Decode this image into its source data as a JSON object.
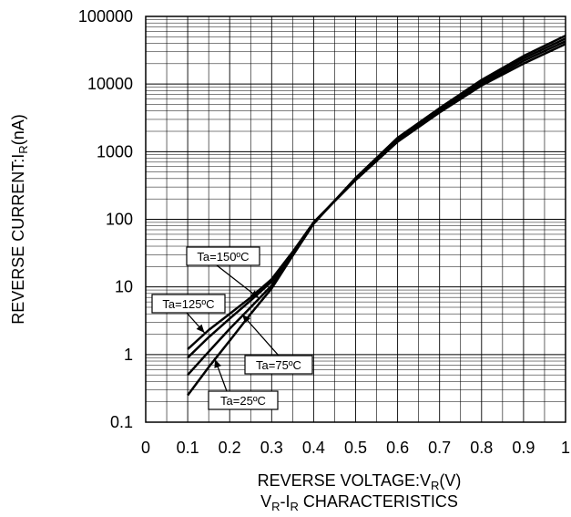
{
  "chart_data": {
    "type": "line",
    "x_axis": {
      "label_main": "REVERSE VOLTAGE:V",
      "label_sub": "R",
      "label_tail": "(V)",
      "range": [
        0,
        1
      ],
      "ticks": [
        "0",
        "0.1",
        "0.2",
        "0.3",
        "0.4",
        "0.5",
        "0.6",
        "0.7",
        "0.8",
        "0.9",
        "1"
      ]
    },
    "y_axis": {
      "scale": "log",
      "label_main": "REVERSE CURRENT:I",
      "label_sub": "R",
      "label_tail": "(nA)",
      "range": [
        0.1,
        100000
      ],
      "ticks": [
        "0.1",
        "1",
        "10",
        "100",
        "1000",
        "10000",
        "100000"
      ]
    },
    "caption": {
      "main_a": "V",
      "sub_a": "R",
      "dash": "-I",
      "sub_b": "R",
      "tail": " CHARACTERISTICS"
    },
    "grid": true,
    "series": [
      {
        "name": "Ta=150ºC",
        "x": [
          0.1,
          0.15,
          0.2,
          0.25,
          0.3,
          0.35,
          0.4,
          0.5,
          0.6,
          0.7,
          0.8,
          0.9,
          1.0
        ],
        "y": [
          1.2,
          2.3,
          4.0,
          7.0,
          13,
          33,
          90,
          380,
          1400,
          3800,
          9500,
          20000,
          39000
        ]
      },
      {
        "name": "Ta=125ºC",
        "x": [
          0.1,
          0.15,
          0.2,
          0.25,
          0.3,
          0.35,
          0.4,
          0.5,
          0.6,
          0.7,
          0.8,
          0.9,
          1.0
        ],
        "y": [
          0.9,
          1.8,
          3.4,
          6.3,
          12,
          32,
          90,
          390,
          1500,
          4000,
          10000,
          22000,
          43000
        ]
      },
      {
        "name": "Ta=75ºC",
        "x": [
          0.1,
          0.15,
          0.2,
          0.25,
          0.3,
          0.35,
          0.4,
          0.5,
          0.6,
          0.7,
          0.8,
          0.9,
          1.0
        ],
        "y": [
          0.5,
          1.1,
          2.4,
          5.0,
          10.5,
          30,
          88,
          400,
          1550,
          4200,
          10800,
          24000,
          47000
        ]
      },
      {
        "name": "Ta=25ºC",
        "x": [
          0.1,
          0.15,
          0.2,
          0.25,
          0.3,
          0.35,
          0.4,
          0.5,
          0.6,
          0.7,
          0.8,
          0.9,
          1.0
        ],
        "y": [
          0.25,
          0.65,
          1.6,
          4.0,
          9.5,
          29,
          86,
          410,
          1600,
          4400,
          11500,
          26000,
          52000
        ]
      }
    ],
    "annotations": [
      {
        "text": "Ta=150ºC",
        "series": "Ta=150ºC"
      },
      {
        "text": "Ta=125ºC",
        "series": "Ta=125ºC"
      },
      {
        "text": "Ta=75ºC",
        "series": "Ta=75ºC"
      },
      {
        "text": "Ta=25ºC",
        "series": "Ta=25ºC"
      }
    ]
  }
}
